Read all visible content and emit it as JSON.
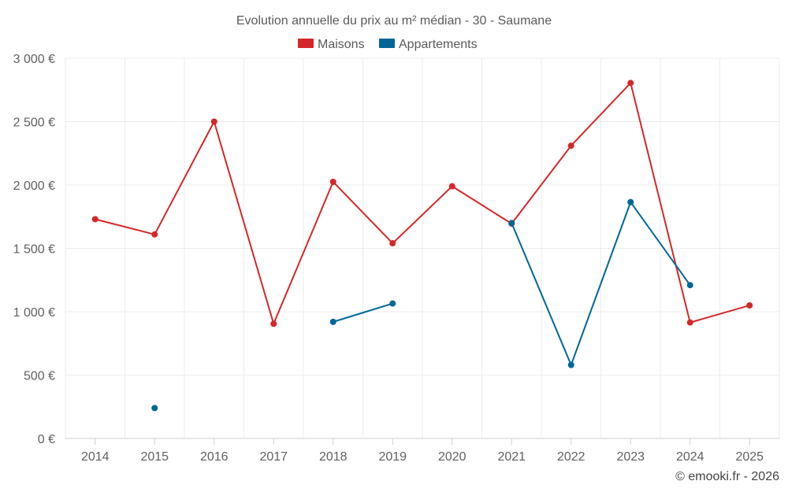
{
  "chart_data": {
    "type": "line",
    "title": "Evolution annuelle du prix au m² médian - 30 - Saumane",
    "categories": [
      "2014",
      "2015",
      "2016",
      "2017",
      "2018",
      "2019",
      "2020",
      "2021",
      "2022",
      "2023",
      "2024",
      "2025"
    ],
    "ylim": [
      0,
      3000
    ],
    "yticks": [
      0,
      500,
      1000,
      1500,
      2000,
      2500,
      3000
    ],
    "ytick_labels": [
      "0 €",
      "500 €",
      "1 000 €",
      "1 500 €",
      "2 000 €",
      "2 500 €",
      "3 000 €"
    ],
    "grid": true,
    "legend_position": "top-center",
    "series": [
      {
        "name": "Maisons",
        "color": "#d62728",
        "values": [
          1730,
          1610,
          2500,
          905,
          2025,
          1540,
          1990,
          1695,
          2310,
          2805,
          915,
          1050
        ]
      },
      {
        "name": "Appartements",
        "color": "#006699",
        "values": [
          null,
          240,
          null,
          null,
          920,
          1065,
          null,
          1700,
          580,
          1865,
          1210,
          null
        ]
      }
    ],
    "credit": "© emooki.fr - 2026"
  }
}
